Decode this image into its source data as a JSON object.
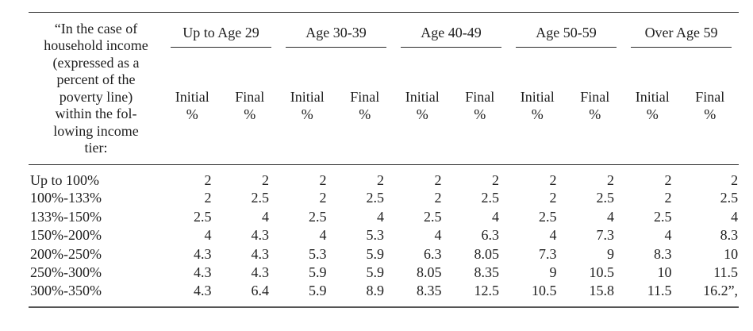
{
  "document": {
    "header": {
      "title_lines": [
        "“In the case of",
        "household income",
        "(expressed as a",
        "percent of the",
        "poverty line)",
        "within the fol-",
        "lowing income",
        "tier:"
      ],
      "age_groups": [
        "Up to Age 29",
        "Age 30-39",
        "Age 40-49",
        "Age 50-59",
        "Over Age 59"
      ],
      "sub": {
        "initial": "Initial",
        "final": "Final",
        "percent": "%"
      }
    },
    "body": {
      "rows": [
        {
          "tier": "Up to 100%",
          "values": [
            "2",
            "2",
            "2",
            "2",
            "2",
            "2",
            "2",
            "2",
            "2",
            "2"
          ]
        },
        {
          "tier": "100%-133%",
          "values": [
            "2",
            "2.5",
            "2",
            "2.5",
            "2",
            "2.5",
            "2",
            "2.5",
            "2",
            "2.5"
          ]
        },
        {
          "tier": "133%-150%",
          "values": [
            "2.5",
            "4",
            "2.5",
            "4",
            "2.5",
            "4",
            "2.5",
            "4",
            "2.5",
            "4"
          ]
        },
        {
          "tier": "150%-200%",
          "values": [
            "4",
            "4.3",
            "4",
            "5.3",
            "4",
            "6.3",
            "4",
            "7.3",
            "4",
            "8.3"
          ]
        },
        {
          "tier": "200%-250%",
          "values": [
            "4.3",
            "4.3",
            "5.3",
            "5.9",
            "6.3",
            "8.05",
            "7.3",
            "9",
            "8.3",
            "10"
          ]
        },
        {
          "tier": "250%-300%",
          "values": [
            "4.3",
            "4.3",
            "5.9",
            "5.9",
            "8.05",
            "8.35",
            "9",
            "10.5",
            "10",
            "11.5"
          ]
        },
        {
          "tier": "300%-350%",
          "values": [
            "4.3",
            "6.4",
            "5.9",
            "8.9",
            "8.35",
            "12.5",
            "10.5",
            "15.8",
            "11.5",
            "16.2”,"
          ]
        }
      ]
    },
    "colors": {
      "text": "#1f1f1f",
      "rule": "#2b2b2b",
      "rule_bottom": "#555555",
      "background": "#ffffff"
    }
  }
}
